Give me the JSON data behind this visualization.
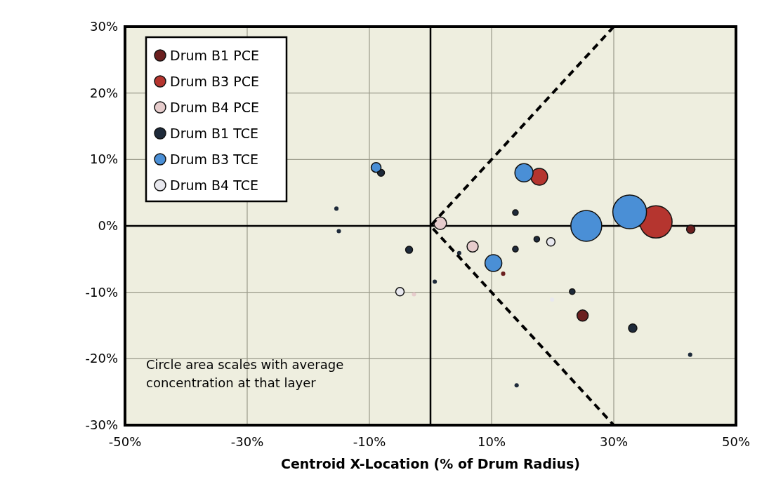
{
  "chart_data": {
    "type": "bubble",
    "xlabel": "Centroid X-Location (% of Drum Radius)",
    "xlim": [
      -50,
      50
    ],
    "ylim": [
      -30,
      30
    ],
    "xticks": [
      {
        "value": -50,
        "label": "-50%"
      },
      {
        "value": -30,
        "label": "-30%"
      },
      {
        "value": -10,
        "label": "-10%"
      },
      {
        "value": 10,
        "label": "10%"
      },
      {
        "value": 30,
        "label": "30%"
      },
      {
        "value": 50,
        "label": "50%"
      }
    ],
    "yticks": [
      {
        "value": -30,
        "label": "-30%"
      },
      {
        "value": -20,
        "label": "-20%"
      },
      {
        "value": -10,
        "label": "-10%"
      },
      {
        "value": 0,
        "label": "0%"
      },
      {
        "value": 10,
        "label": "10%"
      },
      {
        "value": 20,
        "label": "20%"
      },
      {
        "value": 30,
        "label": "30%"
      }
    ],
    "grid": true,
    "legend": "top left",
    "marker": "circle",
    "annotations": [
      "Circle area scales with average concentration at that layer"
    ],
    "series": [
      {
        "name": "Drum B1 PCE",
        "color": "#6b1f1f",
        "x": [
          24.9,
          42.6,
          11.9
        ],
        "values": [
          -13.5,
          -0.5,
          -7.2
        ],
        "sizes": [
          0.11,
          0.0625,
          0.016
        ]
      },
      {
        "name": "Drum B3 PCE",
        "color": "#b5352f",
        "x": [
          36.9,
          17.8
        ],
        "values": [
          0.6,
          7.4
        ],
        "sizes": [
          0.92,
          0.25
        ]
      },
      {
        "name": "Drum B4 PCE",
        "color": "#e6cccc",
        "x": [
          1.6,
          6.9,
          -2.7
        ],
        "values": [
          0.4,
          -3.1,
          -10.3
        ],
        "sizes": [
          0.14,
          0.11,
          0.016
        ]
      },
      {
        "name": "Drum B1 TCE",
        "color": "#1e2a3a",
        "x": [
          -8.1,
          -3.5,
          -15,
          -15.4,
          13.9,
          17.4,
          13.9,
          0.7,
          23.2,
          33.1,
          42.5,
          14.1,
          4.7
        ],
        "values": [
          8.0,
          -3.6,
          -0.8,
          2.6,
          2.0,
          -2.0,
          -3.5,
          -8.4,
          -9.9,
          -15.4,
          -19.4,
          -24.0,
          -4.1
        ],
        "sizes": [
          0.043,
          0.043,
          0.016,
          0.016,
          0.028,
          0.028,
          0.028,
          0.016,
          0.028,
          0.0625,
          0.016,
          0.016,
          0.016
        ]
      },
      {
        "name": "Drum B3 TCE",
        "color": "#4a8fd6",
        "x": [
          32.6,
          25.5,
          15.3,
          10.3,
          -8.9
        ],
        "values": [
          2.1,
          0,
          8.0,
          -5.6,
          8.8
        ],
        "sizes": [
          1,
          0.84,
          0.29,
          0.25,
          0.085
        ]
      },
      {
        "name": "Drum B4 TCE",
        "color": "#e8e8ee",
        "x": [
          -5.0,
          19.7,
          19.9
        ],
        "values": [
          -9.9,
          -2.4,
          -11.1
        ],
        "sizes": [
          0.0625,
          0.0625,
          0.016
        ]
      },
      {
        "type": "line",
        "color": "#000000",
        "line_style": "dashed",
        "marker": "none",
        "x": [
          30,
          0,
          30
        ],
        "values": [
          30,
          0,
          -30
        ]
      }
    ]
  }
}
